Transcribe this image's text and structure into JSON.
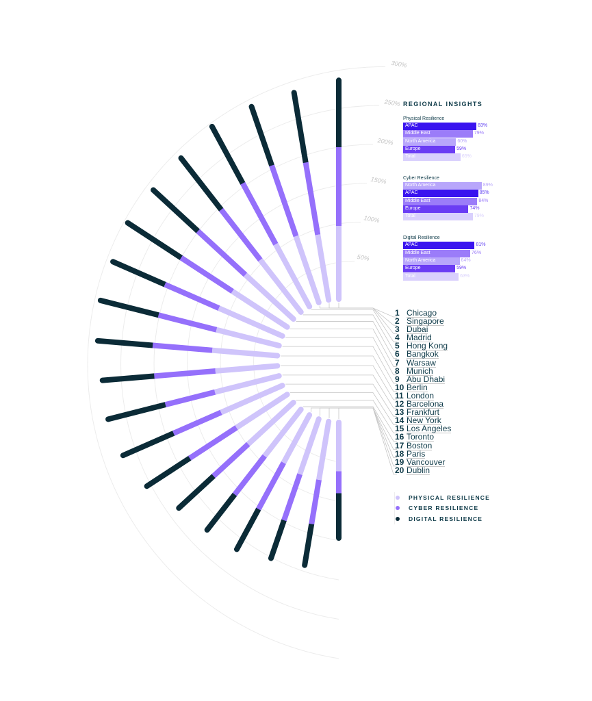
{
  "chart_data": {
    "type": "radial-stacked-bar",
    "categories": [
      "Chicago",
      "Singapore",
      "Dubai",
      "Madrid",
      "Hong Kong",
      "Bangkok",
      "Warsaw",
      "Munich",
      "Abu Dhabi",
      "Berlin",
      "London",
      "Barcelona",
      "Frankfurt",
      "New York",
      "Los Angeles",
      "Toronto",
      "Boston",
      "Paris",
      "Vancouver",
      "Dublin"
    ],
    "series": [
      {
        "name": "PHYSICAL RESILIENCE",
        "color": "#cfc4fb",
        "values": [
          93,
          84,
          89,
          90,
          84,
          83,
          83,
          88,
          82,
          83,
          79,
          84,
          85,
          77,
          78,
          75,
          69,
          74,
          75,
          62
        ]
      },
      {
        "name": "CYBER RESILIENCE",
        "color": "#9570fb",
        "values": [
          100,
          93,
          95,
          88,
          81,
          82,
          78,
          75,
          76,
          76,
          78,
          65,
          66,
          71,
          60,
          62,
          67,
          62,
          57,
          28
        ]
      },
      {
        "name": "DIGITAL RESILIENCE",
        "color": "#0b2b37",
        "values": [
          85,
          90,
          79,
          82,
          83,
          77,
          81,
          72,
          76,
          70,
          66,
          75,
          70,
          65,
          60,
          57,
          58,
          51,
          53,
          57
        ]
      }
    ],
    "radial_ticks": [
      50,
      100,
      150,
      200,
      250,
      300
    ],
    "radial_tick_labels": [
      "50%",
      "100%",
      "150%",
      "200%",
      "250%",
      "300%"
    ],
    "rlim": [
      0,
      300
    ],
    "grid": true,
    "legend_position": "bottom-right"
  },
  "panel": {
    "title": "REGIONAL INSIGHTS",
    "groups": [
      {
        "title": "Physical Resilience",
        "rows": [
          {
            "label": "APAC",
            "value": 83,
            "display": "83%",
            "color": "#3a14ef"
          },
          {
            "label": "Middle East",
            "value": 79,
            "display": "79%",
            "color": "#9b7cf9"
          },
          {
            "label": "North America",
            "value": 60,
            "display": "60%",
            "color": "#b8a6fb"
          },
          {
            "label": "Europe",
            "value": 59,
            "display": "59%",
            "color": "#6a3cf4"
          },
          {
            "label": "Total",
            "value": 65,
            "display": "65%",
            "color": "#d9d0fd"
          }
        ]
      },
      {
        "title": "Cyber Resilience",
        "rows": [
          {
            "label": "North America",
            "value": 89,
            "display": "89%",
            "color": "#b8a6fb"
          },
          {
            "label": "APAC",
            "value": 85,
            "display": "85%",
            "color": "#3a14ef"
          },
          {
            "label": "Middle East",
            "value": 84,
            "display": "84%",
            "color": "#9b7cf9"
          },
          {
            "label": "Europe",
            "value": 74,
            "display": "74%",
            "color": "#6a3cf4"
          },
          {
            "label": "Total",
            "value": 79,
            "display": "79%",
            "color": "#d9d0fd"
          }
        ]
      },
      {
        "title": "Digital Resilience",
        "rows": [
          {
            "label": "APAC",
            "value": 81,
            "display": "81%",
            "color": "#3a14ef"
          },
          {
            "label": "Middle East",
            "value": 76,
            "display": "76%",
            "color": "#9b7cf9"
          },
          {
            "label": "North America",
            "value": 64,
            "display": "64%",
            "color": "#b8a6fb"
          },
          {
            "label": "Europe",
            "value": 59,
            "display": "59%",
            "color": "#6a3cf4"
          },
          {
            "label": "Total",
            "value": 63,
            "display": "63%",
            "color": "#d9d0fd"
          }
        ]
      }
    ]
  },
  "cities": [
    {
      "num": "1",
      "name": "Chicago"
    },
    {
      "num": "2",
      "name": "Singapore"
    },
    {
      "num": "3",
      "name": "Dubai"
    },
    {
      "num": "4",
      "name": "Madrid"
    },
    {
      "num": "5",
      "name": "Hong Kong"
    },
    {
      "num": "6",
      "name": "Bangkok"
    },
    {
      "num": "7",
      "name": "Warsaw"
    },
    {
      "num": "8",
      "name": "Munich"
    },
    {
      "num": "9",
      "name": "Abu Dhabi"
    },
    {
      "num": "10",
      "name": "Berlin"
    },
    {
      "num": "11",
      "name": "London"
    },
    {
      "num": "12",
      "name": "Barcelona"
    },
    {
      "num": "13",
      "name": "Frankfurt"
    },
    {
      "num": "14",
      "name": "New York"
    },
    {
      "num": "15",
      "name": "Los Angeles"
    },
    {
      "num": "16",
      "name": "Toronto"
    },
    {
      "num": "17",
      "name": "Boston"
    },
    {
      "num": "18",
      "name": "Paris"
    },
    {
      "num": "19",
      "name": "Vancouver"
    },
    {
      "num": "20",
      "name": "Dublin"
    }
  ],
  "legend": [
    {
      "label": "PHYSICAL RESILIENCE",
      "color": "#cfc4fb"
    },
    {
      "label": "CYBER RESILIENCE",
      "color": "#9570fb"
    },
    {
      "label": "DIGITAL RESILIENCE",
      "color": "#0b2b37"
    }
  ]
}
